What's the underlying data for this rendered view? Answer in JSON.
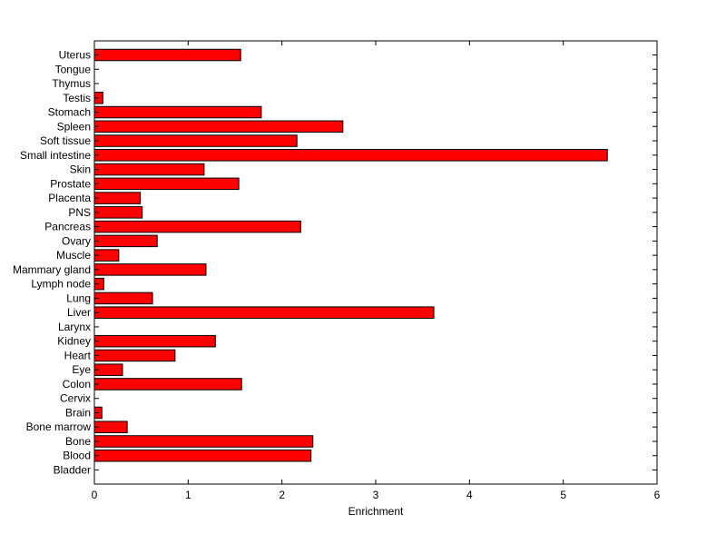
{
  "chart_data": {
    "type": "bar",
    "orientation": "horizontal",
    "title": "",
    "xlabel": "Enrichment",
    "ylabel": "",
    "xlim": [
      0,
      6
    ],
    "xticks": [
      "0",
      "1",
      "2",
      "3",
      "4",
      "5",
      "6"
    ],
    "grid": false,
    "bar_color": "#ff0000",
    "bar_edge_color": "#000000",
    "categories": [
      "Bladder",
      "Blood",
      "Bone",
      "Bone marrow",
      "Brain",
      "Cervix",
      "Colon",
      "Eye",
      "Heart",
      "Kidney",
      "Larynx",
      "Liver",
      "Lung",
      "Lymph node",
      "Mammary gland",
      "Muscle",
      "Ovary",
      "Pancreas",
      "PNS",
      "Placenta",
      "Prostate",
      "Skin",
      "Small intestine",
      "Soft tissue",
      "Spleen",
      "Stomach",
      "Testis",
      "Thymus",
      "Tongue",
      "Uterus"
    ],
    "values": [
      0,
      2.31,
      2.33,
      0.35,
      0.08,
      0,
      1.57,
      0.3,
      0.86,
      1.29,
      0,
      3.62,
      0.62,
      0.1,
      1.19,
      0.26,
      0.67,
      2.2,
      0.51,
      0.49,
      1.54,
      1.17,
      5.47,
      2.16,
      2.65,
      1.78,
      0.09,
      0,
      0,
      1.56
    ]
  }
}
